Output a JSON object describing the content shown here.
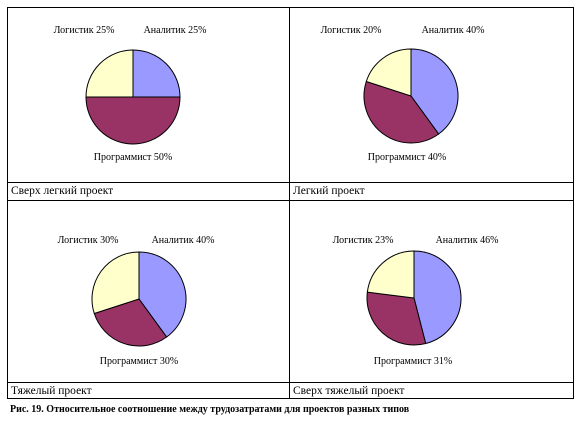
{
  "chart_data": [
    {
      "type": "pie",
      "title": "Сверх легкий проект",
      "slices": [
        {
          "label": "Аналитик 25%",
          "value": 25,
          "color": "#9999ff"
        },
        {
          "label": "Программист 50%",
          "value": 50,
          "color": "#993366"
        },
        {
          "label": "Логистик 25%",
          "value": 25,
          "color": "#ffffcc"
        }
      ]
    },
    {
      "type": "pie",
      "title": "Легкий проект",
      "slices": [
        {
          "label": "Аналитик 40%",
          "value": 40,
          "color": "#9999ff"
        },
        {
          "label": "Программист 40%",
          "value": 40,
          "color": "#993366"
        },
        {
          "label": "Логистик 20%",
          "value": 20,
          "color": "#ffffcc"
        }
      ]
    },
    {
      "type": "pie",
      "title": "Тяжелый проект",
      "slices": [
        {
          "label": "Аналитик 40%",
          "value": 40,
          "color": "#9999ff"
        },
        {
          "label": "Программист 30%",
          "value": 30,
          "color": "#993366"
        },
        {
          "label": "Логистик 30%",
          "value": 30,
          "color": "#ffffcc"
        }
      ]
    },
    {
      "type": "pie",
      "title": "Сверх тяжелый проект",
      "slices": [
        {
          "label": "Аналитик 46%",
          "value": 46,
          "color": "#9999ff"
        },
        {
          "label": "Программист 31%",
          "value": 31,
          "color": "#993366"
        },
        {
          "label": "Логистик 23%",
          "value": 23,
          "color": "#ffffcc"
        }
      ]
    }
  ],
  "caption": "Рис. 19. Относительное соотношение между трудозатратами для проектов разных типов"
}
